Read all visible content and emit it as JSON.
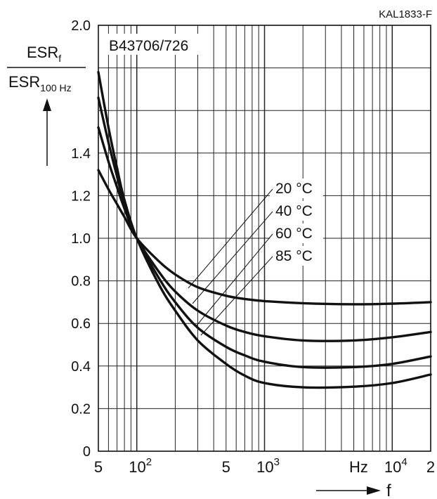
{
  "figure_id": "KAL1833-F",
  "chart_data": {
    "type": "line",
    "title": "B43706/726",
    "xlabel": "f",
    "x_unit": "Hz",
    "x_scale": "log",
    "xlim": [
      50,
      20000
    ],
    "ylim": [
      0,
      2.0
    ],
    "grid": true,
    "y_axis_label": {
      "numerator": "ESR",
      "numerator_sub": "f",
      "denominator": "ESR",
      "denominator_sub": "100 Hz"
    },
    "y_ticks": [
      {
        "value": 0,
        "label": "0"
      },
      {
        "value": 0.2,
        "label": "0.2"
      },
      {
        "value": 0.4,
        "label": "0.4"
      },
      {
        "value": 0.6,
        "label": "0.6"
      },
      {
        "value": 0.8,
        "label": "0.8"
      },
      {
        "value": 1.0,
        "label": "1.0"
      },
      {
        "value": 1.2,
        "label": "1.2"
      },
      {
        "value": 1.4,
        "label": "1.4"
      },
      {
        "value": 2.0,
        "label": "2.0"
      }
    ],
    "y_gridlines": [
      0.2,
      0.4,
      0.6,
      0.8,
      1.0,
      1.2,
      1.4,
      1.6,
      1.8,
      2.0
    ],
    "x_gridlines": [
      60,
      70,
      80,
      90,
      100,
      200,
      300,
      400,
      500,
      600,
      700,
      800,
      900,
      1000,
      2000,
      3000,
      4000,
      5000,
      6000,
      7000,
      8000,
      9000,
      10000,
      20000
    ],
    "x_ticks": [
      {
        "value": 50,
        "label": "5"
      },
      {
        "value": 100,
        "label": "10",
        "sup": "2"
      },
      {
        "value": 500,
        "label": "5"
      },
      {
        "value": 1000,
        "label": "10",
        "sup": "3"
      },
      {
        "value": 10000,
        "label": "10",
        "sup": "4"
      },
      {
        "value": 20000,
        "label": "2"
      }
    ],
    "series": [
      {
        "name": "20 °C",
        "x": [
          50,
          60,
          70,
          80,
          100,
          150,
          200,
          300,
          500,
          700,
          1000,
          2000,
          5000,
          10000,
          20000
        ],
        "y": [
          1.32,
          1.23,
          1.16,
          1.1,
          1.0,
          0.89,
          0.83,
          0.77,
          0.73,
          0.715,
          0.705,
          0.695,
          0.69,
          0.693,
          0.7
        ]
      },
      {
        "name": "40 °C",
        "x": [
          50,
          60,
          70,
          80,
          100,
          150,
          200,
          300,
          500,
          700,
          1000,
          2000,
          5000,
          10000,
          20000
        ],
        "y": [
          1.52,
          1.36,
          1.24,
          1.14,
          1.0,
          0.84,
          0.75,
          0.66,
          0.59,
          0.56,
          0.54,
          0.52,
          0.52,
          0.535,
          0.56
        ]
      },
      {
        "name": "60 °C",
        "x": [
          50,
          60,
          70,
          80,
          100,
          150,
          200,
          300,
          500,
          700,
          1000,
          2000,
          5000,
          10000,
          20000
        ],
        "y": [
          1.66,
          1.45,
          1.29,
          1.16,
          1.0,
          0.81,
          0.7,
          0.58,
          0.49,
          0.45,
          0.42,
          0.395,
          0.395,
          0.41,
          0.445
        ]
      },
      {
        "name": "85 °C",
        "x": [
          50,
          60,
          70,
          80,
          100,
          150,
          200,
          300,
          500,
          700,
          1000,
          2000,
          5000,
          10000,
          20000
        ],
        "y": [
          1.78,
          1.52,
          1.33,
          1.18,
          1.0,
          0.78,
          0.66,
          0.52,
          0.41,
          0.355,
          0.32,
          0.3,
          0.303,
          0.32,
          0.36
        ]
      }
    ]
  }
}
